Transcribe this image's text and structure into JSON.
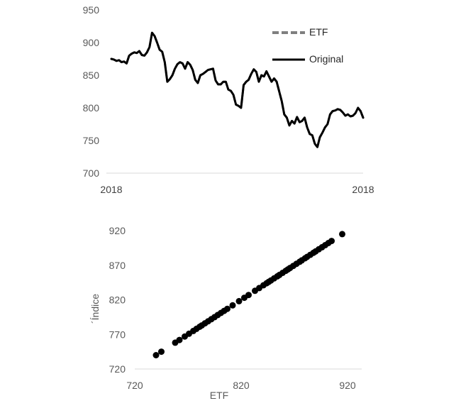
{
  "chart_data": [
    {
      "type": "line",
      "x_tick_labels": [
        "2018",
        "2018"
      ],
      "y_ticks": [
        700,
        750,
        800,
        850,
        900,
        950
      ],
      "ylim": [
        700,
        950
      ],
      "grid": false,
      "legend_position": "top-right",
      "colors": {
        "ETF": "#7f7f7f",
        "Original": "#000000"
      },
      "series": [
        {
          "name": "ETF",
          "style": "dashed",
          "values": [
            875,
            874,
            872,
            873,
            870,
            871,
            868,
            880,
            883,
            885,
            884,
            887,
            881,
            880,
            885,
            893,
            915,
            910,
            900,
            889,
            886,
            870,
            840,
            844,
            850,
            860,
            867,
            870,
            868,
            860,
            870,
            866,
            858,
            843,
            838,
            850,
            852,
            855,
            858,
            859,
            860,
            842,
            836,
            836,
            840,
            840,
            828,
            826,
            820,
            805,
            803,
            800,
            835,
            840,
            843,
            852,
            859,
            855,
            840,
            850,
            848,
            856,
            848,
            840,
            845,
            840,
            825,
            810,
            790,
            785,
            773,
            780,
            776,
            786,
            778,
            780,
            785,
            770,
            760,
            758,
            745,
            740,
            755,
            762,
            770,
            775,
            790,
            795,
            796,
            798,
            797,
            793,
            788,
            790,
            787,
            788,
            792,
            800,
            795,
            785
          ],
          "hidden_under": "Original"
        },
        {
          "name": "Original",
          "style": "solid",
          "values": [
            875,
            874,
            872,
            873,
            870,
            871,
            868,
            880,
            883,
            885,
            884,
            887,
            881,
            880,
            885,
            893,
            915,
            910,
            900,
            889,
            886,
            870,
            840,
            844,
            850,
            860,
            867,
            870,
            868,
            860,
            870,
            866,
            858,
            843,
            838,
            850,
            852,
            855,
            858,
            859,
            860,
            842,
            836,
            836,
            840,
            840,
            828,
            826,
            820,
            805,
            803,
            800,
            835,
            840,
            843,
            852,
            859,
            855,
            840,
            850,
            848,
            856,
            848,
            840,
            845,
            840,
            825,
            810,
            790,
            785,
            773,
            780,
            776,
            786,
            778,
            780,
            785,
            770,
            760,
            758,
            745,
            740,
            755,
            762,
            770,
            775,
            790,
            795,
            796,
            798,
            797,
            793,
            788,
            790,
            787,
            788,
            792,
            800,
            795,
            785
          ]
        }
      ]
    },
    {
      "type": "scatter",
      "xlabel": "ETF",
      "ylabel": "´Índice",
      "x_ticks": [
        720,
        820,
        920
      ],
      "y_ticks": [
        720,
        770,
        820,
        870,
        920
      ],
      "xlim": [
        720,
        920
      ],
      "ylim": [
        720,
        920
      ],
      "grid": false,
      "color": "#000000",
      "x": [
        740,
        745,
        758,
        762,
        767,
        771,
        775,
        778,
        781,
        783,
        786,
        789,
        792,
        795,
        798,
        801,
        804,
        807,
        812,
        818,
        823,
        827,
        833,
        837,
        841,
        844,
        846,
        848,
        851,
        854,
        856,
        859,
        862,
        864,
        866,
        869,
        872,
        875,
        877,
        880,
        882,
        885,
        888,
        890,
        893,
        896,
        899,
        902,
        905,
        915
      ],
      "y": [
        740,
        745,
        758,
        762,
        767,
        771,
        775,
        778,
        781,
        783,
        786,
        789,
        792,
        795,
        798,
        801,
        804,
        807,
        812,
        818,
        823,
        827,
        833,
        837,
        841,
        844,
        846,
        848,
        851,
        854,
        856,
        859,
        862,
        864,
        866,
        869,
        872,
        875,
        877,
        880,
        882,
        885,
        888,
        890,
        893,
        896,
        899,
        902,
        905,
        915
      ]
    }
  ]
}
